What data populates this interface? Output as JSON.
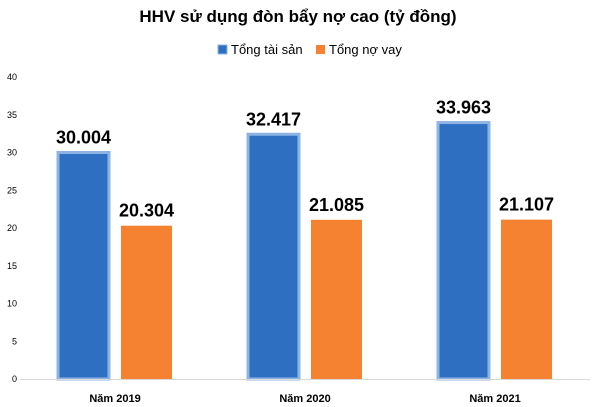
{
  "chart_data": {
    "type": "bar",
    "title": "HHV sử dụng đòn bẩy nợ cao (tỷ đồng)",
    "categories": [
      "Năm 2019",
      "Năm 2020",
      "Năm 2021"
    ],
    "series": [
      {
        "name": "Tổng tài sản",
        "values": [
          30.004,
          32.417,
          33.963
        ],
        "labels": [
          "30.004",
          "32.417",
          "33.963"
        ],
        "color": "#2e6fc2",
        "border": "#8db4e2"
      },
      {
        "name": "Tổng nợ vay",
        "values": [
          20.304,
          21.085,
          21.107
        ],
        "labels": [
          "20.304",
          "21.085",
          "21.107"
        ],
        "color": "#f58231"
      }
    ],
    "yticks": [
      "0",
      "5",
      "10",
      "15",
      "20",
      "25",
      "30",
      "35",
      "40"
    ],
    "ylim": [
      0,
      40
    ],
    "grid": false,
    "legend": "top"
  }
}
